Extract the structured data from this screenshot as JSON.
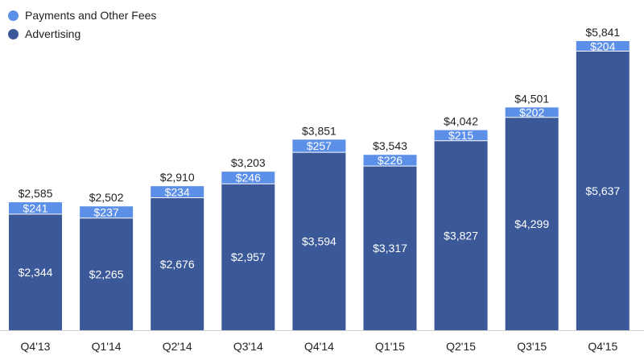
{
  "chart_data": {
    "type": "bar",
    "stacked": true,
    "categories": [
      "Q4'13",
      "Q1'14",
      "Q2'14",
      "Q3'14",
      "Q4'14",
      "Q1'15",
      "Q2'15",
      "Q3'15",
      "Q4'15"
    ],
    "series": [
      {
        "name": "Advertising",
        "color": "#3b5998",
        "values": [
          2344,
          2265,
          2676,
          2957,
          3594,
          3317,
          3827,
          4299,
          5637
        ],
        "labels": [
          "$2,344",
          "$2,265",
          "$2,676",
          "$2,957",
          "$3,594",
          "$3,317",
          "$3,827",
          "$4,299",
          "$5,637"
        ]
      },
      {
        "name": "Payments and Other Fees",
        "color": "#5b8fe8",
        "values": [
          241,
          237,
          234,
          246,
          257,
          226,
          215,
          202,
          204
        ],
        "labels": [
          "$241",
          "$237",
          "$234",
          "$246",
          "$257",
          "$226",
          "$215",
          "$202",
          "$204"
        ]
      }
    ],
    "totals": [
      2585,
      2502,
      2910,
      3203,
      3851,
      3543,
      4042,
      4501,
      5841
    ],
    "total_labels": [
      "$2,585",
      "$2,502",
      "$2,910",
      "$3,203",
      "$3,851",
      "$3,543",
      "$4,042",
      "$4,501",
      "$5,841"
    ],
    "ylim": [
      0,
      5841
    ],
    "legend": [
      {
        "name": "Payments and Other Fees",
        "color": "#5b8fe8"
      },
      {
        "name": "Advertising",
        "color": "#3b5998"
      }
    ],
    "legend_position": "top-left",
    "grid": false
  }
}
